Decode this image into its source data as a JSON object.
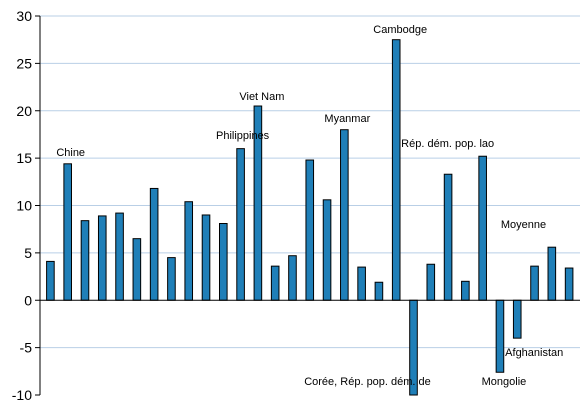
{
  "chart_data": {
    "type": "bar",
    "title": "",
    "xlabel": "",
    "ylabel": "",
    "ylim": [
      -10,
      30
    ],
    "yticks": [
      30,
      25,
      20,
      15,
      10,
      5,
      0,
      -5,
      -10
    ],
    "grid": true,
    "legend": "none",
    "bar_color": "#1f7fb8",
    "grid_color": "#b9cfe6",
    "values": [
      4.1,
      14.4,
      8.4,
      8.9,
      9.2,
      6.5,
      11.8,
      4.5,
      10.4,
      9.0,
      8.1,
      16.0,
      20.5,
      3.6,
      4.7,
      14.8,
      10.6,
      18.0,
      3.5,
      1.9,
      27.5,
      -10.0,
      3.8,
      13.3,
      2.0,
      15.2,
      -7.6,
      -4.0,
      3.6,
      5.6,
      3.4
    ],
    "annotations": [
      {
        "text": "Chine",
        "index": 1
      },
      {
        "text": "Philippines",
        "index": 11
      },
      {
        "text": "Viet Nam",
        "index": 12
      },
      {
        "text": "Myanmar",
        "index": 17
      },
      {
        "text": "Cambodge",
        "index": 20
      },
      {
        "text": "Corée, Rép. pop. dém. de",
        "index": 21
      },
      {
        "text": "Rép. dém. pop. lao",
        "index": 25
      },
      {
        "text": "Mongolie",
        "index": 26
      },
      {
        "text": "Afghanistan",
        "index": 27
      },
      {
        "text": "Moyenne",
        "index": 28
      }
    ]
  }
}
